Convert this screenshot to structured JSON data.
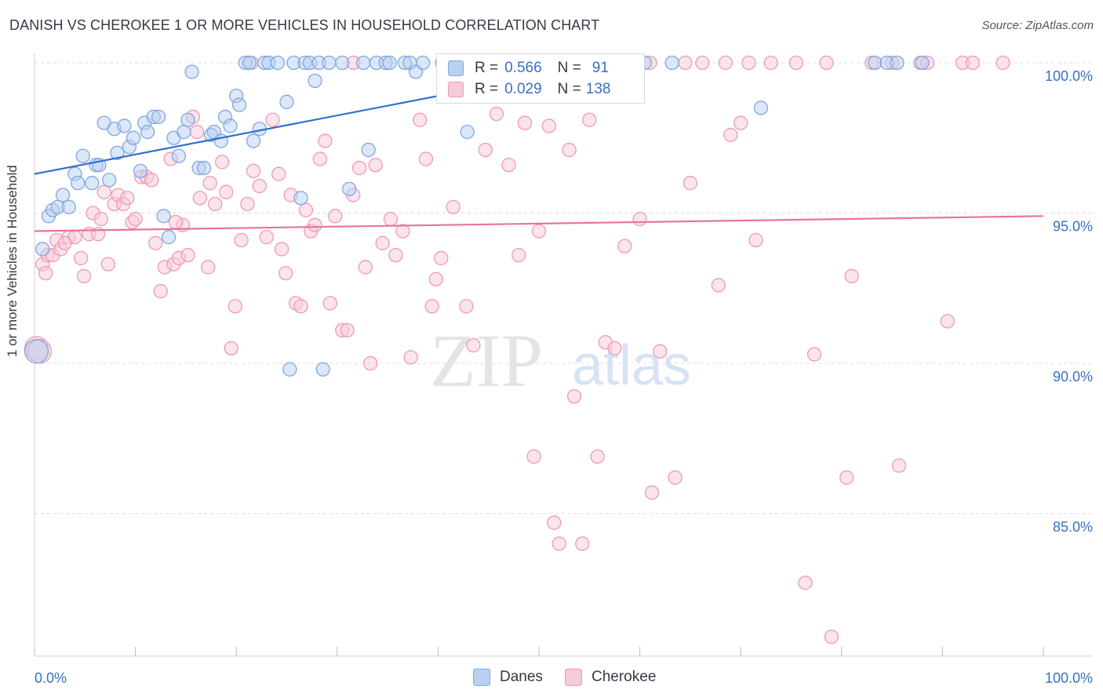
{
  "title": "DANISH VS CHEROKEE 1 OR MORE VEHICLES IN HOUSEHOLD CORRELATION CHART",
  "source": "Source: ZipAtlas.com",
  "watermark": {
    "zip": "ZIP",
    "atlas": "atlas"
  },
  "colors": {
    "danes": "#7fa7e0",
    "danes_fill": "#b9d0f2",
    "danes_line": "#2f6fce",
    "cherokee": "#ee9ab5",
    "cherokee_fill": "#f7cad8",
    "cherokee_line": "#e8749b",
    "tick_label": "#3a6fc4",
    "grid": "#dcdcdc"
  },
  "legend": {
    "danes": {
      "r_label": "R = ",
      "r_value": "0.566",
      "n_label": "N = ",
      "n_value": "91"
    },
    "cherokee": {
      "r_label": "R = ",
      "r_value": "0.029",
      "n_label": "N = ",
      "n_value": "138"
    }
  },
  "bottom_legend": {
    "danes": "Danes",
    "cherokee": "Cherokee"
  },
  "chart_data": {
    "type": "scatter",
    "title": "DANISH VS CHEROKEE 1 OR MORE VEHICLES IN HOUSEHOLD CORRELATION CHART",
    "xlabel": "",
    "ylabel": "1 or more Vehicles in Household",
    "xlim": [
      0,
      100
    ],
    "ylim": [
      80.0,
      100.8
    ],
    "x_tick_labels": [
      "0.0%",
      "100.0%"
    ],
    "y_ticks": [
      100,
      95,
      90,
      85
    ],
    "y_tick_labels": [
      "100.0%",
      "95.0%",
      "90.0%",
      "85.0%"
    ],
    "grid": true,
    "legend_position": "top-center",
    "series": [
      {
        "name": "Danes",
        "r": 0.566,
        "n": 91,
        "trend": {
          "x": [
            0,
            57
          ],
          "y": [
            96.3,
            100.0
          ]
        },
        "points": [
          [
            0.2,
            90.4
          ],
          [
            0.8,
            93.8
          ],
          [
            1.4,
            94.9
          ],
          [
            1.8,
            95.1
          ],
          [
            2.3,
            95.2
          ],
          [
            2.8,
            95.6
          ],
          [
            3.4,
            95.2
          ],
          [
            4.0,
            96.3
          ],
          [
            4.3,
            96.0
          ],
          [
            4.8,
            96.9
          ],
          [
            5.7,
            96.0
          ],
          [
            6.1,
            96.6
          ],
          [
            6.4,
            96.6
          ],
          [
            6.9,
            98.0
          ],
          [
            7.4,
            96.1
          ],
          [
            7.9,
            97.8
          ],
          [
            8.2,
            97.0
          ],
          [
            8.9,
            97.9
          ],
          [
            9.4,
            97.2
          ],
          [
            9.8,
            97.5
          ],
          [
            10.5,
            96.4
          ],
          [
            10.9,
            98.0
          ],
          [
            11.2,
            97.7
          ],
          [
            11.8,
            98.2
          ],
          [
            12.3,
            98.2
          ],
          [
            12.8,
            94.9
          ],
          [
            13.3,
            94.2
          ],
          [
            13.8,
            97.5
          ],
          [
            14.3,
            96.9
          ],
          [
            14.8,
            97.7
          ],
          [
            15.2,
            98.1
          ],
          [
            15.6,
            99.7
          ],
          [
            16.3,
            96.5
          ],
          [
            16.8,
            96.5
          ],
          [
            17.5,
            97.6
          ],
          [
            17.8,
            97.7
          ],
          [
            18.5,
            97.4
          ],
          [
            18.9,
            98.2
          ],
          [
            19.4,
            97.9
          ],
          [
            20.0,
            98.9
          ],
          [
            20.3,
            98.6
          ],
          [
            20.9,
            100.0
          ],
          [
            21.3,
            100.0
          ],
          [
            21.7,
            97.4
          ],
          [
            22.3,
            97.8
          ],
          [
            22.8,
            100.0
          ],
          [
            23.2,
            100.0
          ],
          [
            24.1,
            100.0
          ],
          [
            25.0,
            98.7
          ],
          [
            25.3,
            89.8
          ],
          [
            25.7,
            100.0
          ],
          [
            26.4,
            95.5
          ],
          [
            26.8,
            100.0
          ],
          [
            27.3,
            100.0
          ],
          [
            27.8,
            99.4
          ],
          [
            28.2,
            100.0
          ],
          [
            28.6,
            89.8
          ],
          [
            29.2,
            100.0
          ],
          [
            30.5,
            100.0
          ],
          [
            31.2,
            95.8
          ],
          [
            32.6,
            100.0
          ],
          [
            33.1,
            97.1
          ],
          [
            33.9,
            100.0
          ],
          [
            34.8,
            100.0
          ],
          [
            35.2,
            100.0
          ],
          [
            36.7,
            100.0
          ],
          [
            37.2,
            100.0
          ],
          [
            37.8,
            99.7
          ],
          [
            38.5,
            100.0
          ],
          [
            40.4,
            100.0
          ],
          [
            41.0,
            100.0
          ],
          [
            42.3,
            100.0
          ],
          [
            42.9,
            97.7
          ],
          [
            44.0,
            100.0
          ],
          [
            45.5,
            100.0
          ],
          [
            46.0,
            100.0
          ],
          [
            47.3,
            100.0
          ],
          [
            48.5,
            100.0
          ],
          [
            49.7,
            100.0
          ],
          [
            52.1,
            100.0
          ],
          [
            54.0,
            100.0
          ],
          [
            54.5,
            100.0
          ],
          [
            56.2,
            100.0
          ],
          [
            57.3,
            100.0
          ],
          [
            60.5,
            100.0
          ],
          [
            63.2,
            100.0
          ],
          [
            72.0,
            98.5
          ],
          [
            83.3,
            100.0
          ],
          [
            84.5,
            100.0
          ],
          [
            85.5,
            100.0
          ],
          [
            88.0,
            100.0
          ]
        ],
        "extra_points_note": ""
      },
      {
        "name": "Cherokee",
        "r": 0.029,
        "n": 138,
        "trend": {
          "x": [
            0,
            100
          ],
          "y": [
            94.4,
            94.9
          ]
        },
        "points": [
          [
            0.2,
            90.5
          ],
          [
            0.8,
            93.3
          ],
          [
            1.3,
            93.6
          ],
          [
            1.8,
            93.6
          ],
          [
            2.2,
            94.1
          ],
          [
            2.6,
            93.8
          ],
          [
            3.4,
            94.2
          ],
          [
            4.0,
            94.2
          ],
          [
            4.6,
            93.5
          ],
          [
            4.9,
            92.9
          ],
          [
            5.4,
            94.3
          ],
          [
            5.8,
            95.0
          ],
          [
            6.3,
            94.3
          ],
          [
            6.9,
            95.7
          ],
          [
            7.3,
            93.3
          ],
          [
            7.9,
            95.3
          ],
          [
            8.3,
            95.6
          ],
          [
            8.8,
            95.3
          ],
          [
            9.2,
            95.5
          ],
          [
            9.7,
            94.7
          ],
          [
            10.0,
            94.8
          ],
          [
            10.6,
            96.2
          ],
          [
            11.1,
            96.2
          ],
          [
            12.0,
            94.0
          ],
          [
            12.5,
            92.4
          ],
          [
            12.9,
            93.2
          ],
          [
            13.5,
            96.8
          ],
          [
            13.8,
            93.3
          ],
          [
            14.3,
            93.5
          ],
          [
            14.7,
            94.6
          ],
          [
            15.2,
            93.6
          ],
          [
            15.7,
            98.2
          ],
          [
            16.1,
            97.7
          ],
          [
            16.4,
            95.5
          ],
          [
            17.2,
            93.2
          ],
          [
            17.4,
            96.0
          ],
          [
            17.9,
            95.3
          ],
          [
            18.6,
            96.7
          ],
          [
            19.0,
            95.7
          ],
          [
            19.5,
            90.5
          ],
          [
            19.9,
            91.9
          ],
          [
            20.5,
            94.1
          ],
          [
            21.1,
            95.3
          ],
          [
            21.7,
            96.4
          ],
          [
            22.3,
            95.9
          ],
          [
            23.0,
            94.2
          ],
          [
            23.6,
            98.1
          ],
          [
            24.2,
            96.3
          ],
          [
            24.5,
            93.8
          ],
          [
            24.9,
            93.0
          ],
          [
            25.4,
            95.6
          ],
          [
            25.9,
            92.0
          ],
          [
            26.4,
            91.9
          ],
          [
            26.9,
            95.1
          ],
          [
            27.4,
            94.4
          ],
          [
            27.8,
            94.6
          ],
          [
            28.3,
            96.8
          ],
          [
            28.8,
            97.4
          ],
          [
            29.3,
            92.0
          ],
          [
            29.8,
            94.9
          ],
          [
            30.5,
            91.1
          ],
          [
            31.0,
            91.1
          ],
          [
            31.6,
            95.6
          ],
          [
            32.2,
            96.5
          ],
          [
            32.8,
            93.2
          ],
          [
            33.3,
            90.0
          ],
          [
            33.8,
            96.6
          ],
          [
            34.5,
            94.0
          ],
          [
            35.3,
            94.8
          ],
          [
            35.8,
            93.6
          ],
          [
            36.5,
            94.4
          ],
          [
            37.3,
            90.2
          ],
          [
            38.2,
            98.1
          ],
          [
            38.8,
            96.8
          ],
          [
            39.4,
            91.9
          ],
          [
            39.8,
            92.8
          ],
          [
            40.3,
            93.5
          ],
          [
            41.5,
            95.2
          ],
          [
            42.8,
            91.9
          ],
          [
            43.5,
            90.6
          ],
          [
            44.7,
            97.1
          ],
          [
            45.8,
            98.3
          ],
          [
            47.0,
            96.6
          ],
          [
            48.0,
            93.6
          ],
          [
            48.6,
            98.0
          ],
          [
            49.5,
            86.9
          ],
          [
            50.0,
            94.4
          ],
          [
            51.0,
            97.9
          ],
          [
            51.5,
            84.7
          ],
          [
            52.0,
            84.0
          ],
          [
            53.0,
            97.1
          ],
          [
            53.5,
            88.9
          ],
          [
            54.3,
            84.0
          ],
          [
            55.0,
            98.1
          ],
          [
            55.8,
            86.9
          ],
          [
            56.6,
            90.7
          ],
          [
            57.5,
            90.5
          ],
          [
            58.5,
            93.9
          ],
          [
            60.0,
            94.8
          ],
          [
            61.2,
            85.7
          ],
          [
            62.0,
            90.4
          ],
          [
            63.5,
            86.2
          ],
          [
            64.5,
            100.0
          ],
          [
            65.0,
            96.0
          ],
          [
            66.2,
            100.0
          ],
          [
            67.8,
            92.6
          ],
          [
            68.5,
            100.0
          ],
          [
            69.0,
            97.6
          ],
          [
            70.0,
            98.0
          ],
          [
            71.5,
            94.1
          ],
          [
            73.0,
            100.0
          ],
          [
            75.5,
            100.0
          ],
          [
            76.4,
            82.7
          ],
          [
            77.3,
            90.3
          ],
          [
            79.0,
            80.9
          ],
          [
            80.5,
            86.2
          ],
          [
            81.0,
            92.9
          ],
          [
            83.0,
            100.0
          ],
          [
            85.7,
            86.6
          ],
          [
            87.8,
            100.0
          ],
          [
            90.5,
            91.4
          ],
          [
            92.0,
            100.0
          ],
          [
            96.0,
            100.0
          ],
          [
            0.5,
            90.4
          ],
          [
            1.1,
            93.0
          ],
          [
            3.0,
            94.0
          ],
          [
            6.6,
            94.8
          ],
          [
            11.6,
            96.1
          ],
          [
            14.0,
            94.7
          ],
          [
            21.5,
            100.0
          ],
          [
            31.6,
            100.0
          ],
          [
            41.0,
            100.0
          ],
          [
            52.3,
            100.0
          ],
          [
            61.0,
            100.0
          ],
          [
            70.8,
            100.0
          ],
          [
            78.5,
            100.0
          ],
          [
            85.0,
            100.0
          ],
          [
            88.5,
            100.0
          ],
          [
            93.0,
            100.0
          ]
        ]
      }
    ]
  }
}
